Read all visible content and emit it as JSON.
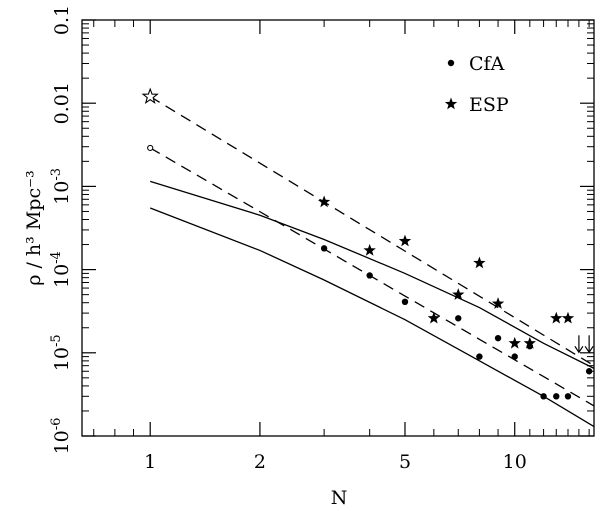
{
  "chart_data": {
    "type": "scatter",
    "title": "",
    "xlabel": "N",
    "ylabel": "ρ / h³ Mpc⁻³",
    "xscale": "log",
    "yscale": "log",
    "xlim": [
      0.65,
      16.5
    ],
    "ylim": [
      1e-06,
      0.1
    ],
    "xticks": [
      {
        "value": 1,
        "label": "1"
      },
      {
        "value": 2,
        "label": "2"
      },
      {
        "value": 5,
        "label": "5"
      },
      {
        "value": 10,
        "label": "10"
      }
    ],
    "yticks": [
      {
        "value": 1e-06,
        "base": "10",
        "exp": "-6"
      },
      {
        "value": 1e-05,
        "base": "10",
        "exp": "-5"
      },
      {
        "value": 0.0001,
        "base": "10",
        "exp": "-4"
      },
      {
        "value": 0.001,
        "base": "10",
        "exp": "-3"
      },
      {
        "value": 0.01,
        "base": "0.01",
        "exp": ""
      },
      {
        "value": 0.1,
        "base": "0.1",
        "exp": ""
      }
    ],
    "legend_position": "top-right",
    "series": [
      {
        "name": "CfA",
        "marker": "dot",
        "x": [
          3,
          4,
          5,
          7,
          8,
          9,
          10,
          11,
          12,
          13,
          14,
          16
        ],
        "y": [
          0.00018,
          8.5e-05,
          4.1e-05,
          2.6e-05,
          9e-06,
          1.5e-05,
          9e-06,
          1.2e-05,
          3e-06,
          3e-06,
          3e-06,
          6e-06
        ]
      },
      {
        "name": "ESP",
        "marker": "star",
        "x": [
          3,
          4,
          5,
          6,
          7,
          8,
          9,
          10,
          11,
          13,
          14
        ],
        "y": [
          0.00065,
          0.00017,
          0.00022,
          2.6e-05,
          5e-05,
          0.00012,
          3.9e-05,
          1.3e-05,
          1.3e-05,
          2.6e-05,
          2.6e-05
        ]
      }
    ],
    "open_markers": [
      {
        "marker": "open-star",
        "x": 1,
        "y": 0.012
      },
      {
        "marker": "open-circle",
        "x": 1,
        "y": 0.0029
      }
    ],
    "upper_limits": [
      {
        "x": 15,
        "y": 1.3e-05
      },
      {
        "x": 16,
        "y": 1.3e-05
      }
    ],
    "lines": [
      {
        "style": "dashed",
        "x": [
          1,
          16.5
        ],
        "y": [
          0.012,
          7e-06
        ]
      },
      {
        "style": "dashed",
        "x": [
          1,
          16.5
        ],
        "y": [
          0.0029,
          2.3e-06
        ]
      },
      {
        "style": "solid",
        "x": [
          1,
          2,
          3,
          5,
          8,
          12,
          16.5
        ],
        "y": [
          0.00115,
          0.00045,
          0.00023,
          9e-05,
          3.5e-05,
          1.3e-05,
          6.5e-06
        ]
      },
      {
        "style": "solid",
        "x": [
          1,
          2,
          3,
          5,
          8,
          12,
          16.5
        ],
        "y": [
          0.00055,
          0.00017,
          7.5e-05,
          2.5e-05,
          8e-06,
          3e-06,
          1.3e-06
        ]
      }
    ]
  }
}
